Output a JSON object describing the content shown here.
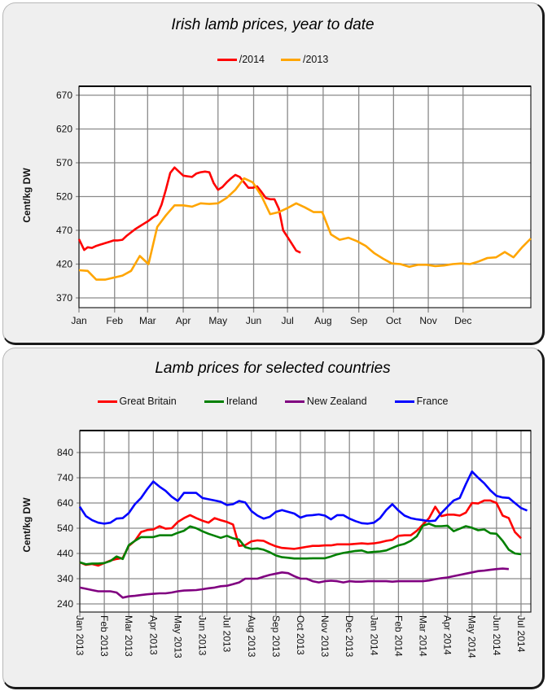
{
  "chart_data": [
    {
      "type": "line",
      "title": "Irish lamb prices, year to date",
      "xlabel": "",
      "ylabel": "Cent/kg DW",
      "ylim": [
        370,
        670
      ],
      "yticks": [
        370,
        420,
        470,
        520,
        570,
        620,
        670
      ],
      "xticks": [
        "Jan",
        "Feb",
        "Mar",
        "Apr",
        "May",
        "Jun",
        "Jul",
        "Aug",
        "Sep",
        "Oct",
        "Nov",
        "Dec"
      ],
      "x_unit": "week of year (0 = start of Jan)",
      "grid": true,
      "legend_position": "top-center",
      "series": [
        {
          "name": "/2014",
          "color": "#ff0000",
          "x": [
            0,
            0.6,
            1,
            1.5,
            2,
            2.5,
            3,
            3.5,
            4,
            4.5,
            5,
            5.5,
            6,
            6.5,
            7,
            7.5,
            8,
            8.5,
            9,
            9.5,
            10,
            10.5,
            11,
            11.5,
            12,
            12.5,
            13,
            13.5,
            14,
            14.5,
            15,
            15.5,
            16,
            16.5,
            17,
            17.5,
            18,
            18.5,
            19,
            19.5,
            20,
            20.5,
            21,
            21.5,
            22,
            22.5,
            23,
            23.5,
            24,
            24.5,
            25,
            25.5,
            26,
            26.5,
            27,
            27.5,
            28,
            28.5
          ],
          "values": [
            457,
            441,
            445,
            444,
            447,
            449,
            451,
            453,
            455,
            455,
            456,
            462,
            467,
            472,
            476,
            480,
            484,
            489,
            493,
            508,
            530,
            555,
            563,
            557,
            551,
            550,
            549,
            554,
            556,
            557,
            556,
            540,
            530,
            534,
            541,
            547,
            552,
            549,
            541,
            533,
            533,
            535,
            527,
            518,
            516,
            516,
            502,
            470,
            460,
            450,
            440,
            437,
            null,
            null,
            null,
            null,
            null,
            null
          ]
        },
        {
          "name": "/2013",
          "color": "#ffa500",
          "x": [
            0,
            1,
            2,
            3,
            4,
            5,
            6,
            7,
            8,
            9,
            10,
            11,
            12,
            13,
            14,
            15,
            16,
            17,
            18,
            19,
            20,
            21,
            22,
            23,
            24,
            25,
            26,
            27,
            28,
            29,
            30,
            31,
            32,
            33,
            34,
            35,
            36,
            37,
            38,
            39,
            40,
            41,
            42,
            43,
            44,
            45,
            46,
            47,
            48,
            49,
            50,
            51,
            52
          ],
          "values": [
            411,
            410,
            397,
            397,
            400,
            403,
            410,
            432,
            420,
            475,
            492,
            507,
            507,
            505,
            510,
            509,
            510,
            518,
            530,
            547,
            541,
            521,
            494,
            497,
            503,
            510,
            504,
            497,
            497,
            464,
            456,
            459,
            454,
            447,
            436,
            428,
            421,
            420,
            416,
            419,
            419,
            417,
            418,
            420,
            421,
            420,
            424,
            429,
            430,
            438,
            430,
            445,
            458
          ]
        }
      ]
    },
    {
      "type": "line",
      "title": "Lamb prices for selected countries",
      "xlabel": "",
      "ylabel": "Cent/kg DW",
      "ylim": [
        240,
        840
      ],
      "yticks": [
        240,
        340,
        440,
        540,
        640,
        740,
        840
      ],
      "xticks": [
        "Jan 2013",
        "Feb 2013",
        "Mar 2013",
        "Apr 2013",
        "May 2013",
        "Jun 2013",
        "Jul 2013",
        "Aug 2013",
        "Sep 2013",
        "Oct 2013",
        "Nov 2013",
        "Dec 2013",
        "Jan 2014",
        "Feb 2014",
        "Mar 2014",
        "Apr 2014",
        "May 2014",
        "Jun 2014",
        "Jul 2014"
      ],
      "x_unit": "months since Jan 2013",
      "grid": true,
      "legend_position": "top-center",
      "x": [
        0,
        0.25,
        0.5,
        0.75,
        1,
        1.25,
        1.5,
        1.75,
        2,
        2.25,
        2.5,
        2.75,
        3,
        3.25,
        3.5,
        3.75,
        4,
        4.25,
        4.5,
        4.75,
        5,
        5.25,
        5.5,
        5.75,
        6,
        6.25,
        6.5,
        6.75,
        7,
        7.25,
        7.5,
        7.75,
        8,
        8.25,
        8.5,
        8.75,
        9,
        9.25,
        9.5,
        9.75,
        10,
        10.25,
        10.5,
        10.75,
        11,
        11.25,
        11.5,
        11.75,
        12,
        12.25,
        12.5,
        12.75,
        13,
        13.25,
        13.5,
        13.75,
        14,
        14.25,
        14.5,
        14.75,
        15,
        15.25,
        15.5,
        15.75,
        16,
        16.25,
        16.5,
        16.75,
        17,
        17.25,
        17.5,
        17.75,
        18,
        18.25,
        18.5
      ],
      "series": [
        {
          "name": "Great Britain",
          "color": "#ff0000",
          "values": [
            405,
            395,
            398,
            392,
            402,
            412,
            418,
            422,
            470,
            490,
            525,
            533,
            535,
            548,
            538,
            540,
            565,
            580,
            592,
            580,
            570,
            562,
            580,
            572,
            565,
            555,
            470,
            473,
            488,
            492,
            490,
            478,
            468,
            462,
            460,
            458,
            462,
            466,
            470,
            470,
            472,
            472,
            476,
            476,
            476,
            478,
            480,
            478,
            480,
            484,
            490,
            494,
            510,
            512,
            512,
            530,
            555,
            580,
            625,
            588,
            594,
            594,
            590,
            602,
            640,
            638,
            650,
            650,
            640,
            590,
            580,
            525,
            500,
            null,
            null
          ],
          "values_note": "last two points beyond chart"
        },
        {
          "name": "Ireland",
          "color": "#008000",
          "values": [
            405,
            397,
            400,
            400,
            402,
            410,
            428,
            418,
            473,
            490,
            505,
            505,
            505,
            512,
            512,
            512,
            522,
            530,
            547,
            540,
            528,
            518,
            510,
            502,
            510,
            500,
            495,
            465,
            458,
            460,
            455,
            445,
            432,
            425,
            423,
            420,
            420,
            420,
            421,
            421,
            421,
            428,
            436,
            442,
            446,
            450,
            452,
            444,
            446,
            448,
            452,
            462,
            472,
            478,
            490,
            508,
            550,
            558,
            548,
            548,
            550,
            528,
            538,
            548,
            542,
            532,
            535,
            520,
            518,
            490,
            455,
            440,
            437,
            null,
            null
          ]
        },
        {
          "name": "New Zealand",
          "color": "#800080",
          "values": [
            305,
            300,
            295,
            290,
            290,
            290,
            285,
            265,
            270,
            272,
            275,
            278,
            280,
            282,
            282,
            285,
            290,
            293,
            294,
            295,
            298,
            302,
            305,
            310,
            312,
            318,
            325,
            340,
            340,
            340,
            348,
            355,
            360,
            365,
            362,
            350,
            340,
            340,
            330,
            325,
            330,
            332,
            330,
            325,
            330,
            328,
            328,
            330,
            330,
            330,
            330,
            328,
            330,
            330,
            330,
            330,
            330,
            333,
            338,
            342,
            345,
            350,
            355,
            360,
            365,
            370,
            372,
            375,
            378,
            380,
            378,
            null,
            null,
            null,
            null
          ]
        },
        {
          "name": "France",
          "color": "#0000ff",
          "values": [
            625,
            588,
            572,
            562,
            558,
            562,
            578,
            580,
            600,
            635,
            660,
            695,
            725,
            705,
            688,
            665,
            648,
            680,
            680,
            680,
            660,
            655,
            650,
            645,
            632,
            635,
            648,
            642,
            608,
            590,
            578,
            585,
            605,
            612,
            605,
            598,
            582,
            590,
            592,
            595,
            590,
            575,
            592,
            592,
            578,
            568,
            560,
            558,
            562,
            580,
            612,
            635,
            610,
            590,
            580,
            575,
            572,
            568,
            570,
            600,
            625,
            650,
            660,
            715,
            765,
            740,
            718,
            690,
            668,
            662,
            660,
            640,
            620,
            610,
            598
          ]
        }
      ]
    }
  ]
}
